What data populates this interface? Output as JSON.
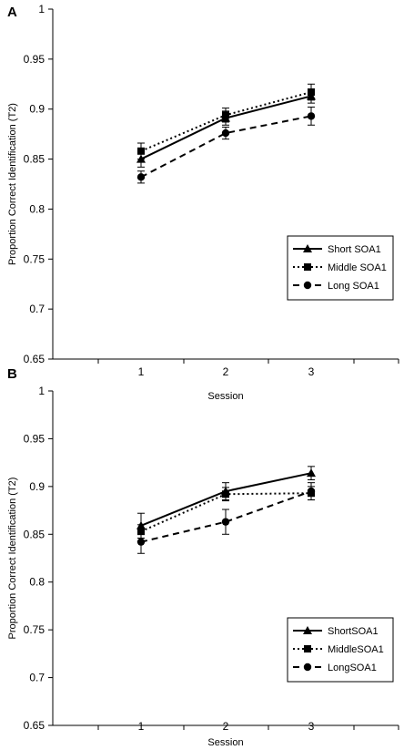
{
  "chart_data": [
    {
      "type": "line",
      "panel_label": "A",
      "xlabel": "Session",
      "ylabel": "Proportion Correct Identification (T2)",
      "categories": [
        "1",
        "2",
        "3"
      ],
      "ylim": [
        0.65,
        1
      ],
      "yticks": [
        "0.65",
        "0.7",
        "0.75",
        "0.8",
        "0.85",
        "0.9",
        "0.95",
        "1"
      ],
      "legend_position": "bottom-right",
      "series": [
        {
          "name": "Short SOA1",
          "marker": "triangle",
          "line": "solid",
          "values": [
            0.85,
            0.891,
            0.913
          ],
          "errors": [
            0.008,
            0.007,
            0.007
          ]
        },
        {
          "name": "Middle SOA1",
          "marker": "square",
          "line": "dotted",
          "values": [
            0.858,
            0.894,
            0.917
          ],
          "errors": [
            0.008,
            0.007,
            0.008
          ]
        },
        {
          "name": "Long SOA1",
          "marker": "circle",
          "line": "dashed",
          "values": [
            0.832,
            0.876,
            0.893
          ],
          "errors": [
            0.006,
            0.006,
            0.009
          ]
        }
      ]
    },
    {
      "type": "line",
      "panel_label": "B",
      "xlabel": "Session",
      "ylabel": "Proportion Correct Identification (T2)",
      "categories": [
        "1",
        "2",
        "3"
      ],
      "ylim": [
        0.65,
        1
      ],
      "yticks": [
        "0.65",
        "0.7",
        "0.75",
        "0.8",
        "0.85",
        "0.9",
        "0.95",
        "1"
      ],
      "legend_position": "bottom-right",
      "series": [
        {
          "name": "ShortSOA1",
          "marker": "triangle",
          "line": "solid",
          "values": [
            0.859,
            0.895,
            0.914
          ],
          "errors": [
            0.013,
            0.009,
            0.007
          ]
        },
        {
          "name": "MiddleSOA1",
          "marker": "square",
          "line": "dotted",
          "values": [
            0.853,
            0.892,
            0.893
          ],
          "errors": [
            0.007,
            0.007,
            0.007
          ]
        },
        {
          "name": "LongSOA1",
          "marker": "circle",
          "line": "dashed",
          "values": [
            0.842,
            0.863,
            0.895
          ],
          "errors": [
            0.012,
            0.013,
            0.009
          ]
        }
      ]
    }
  ]
}
